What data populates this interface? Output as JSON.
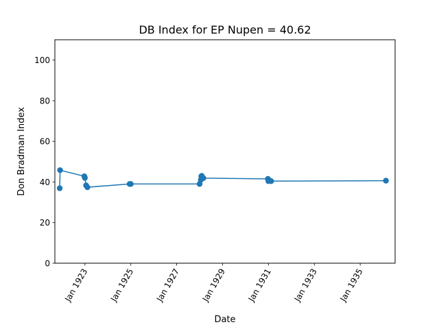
{
  "chart_data": {
    "type": "line",
    "title": "DB Index for EP Nupen = 40.62",
    "xlabel": "Date",
    "ylabel": "Don Bradman Index",
    "ylim": [
      0,
      110
    ],
    "xlim": [
      "1921-09-10",
      "1936-07-10"
    ],
    "yticks": [
      0,
      20,
      40,
      60,
      80,
      100
    ],
    "xticks": [
      {
        "label": "Jan 1923",
        "date": "1923-01-01"
      },
      {
        "label": "Jan 1925",
        "date": "1925-01-01"
      },
      {
        "label": "Jan 1927",
        "date": "1927-01-01"
      },
      {
        "label": "Jan 1929",
        "date": "1929-01-01"
      },
      {
        "label": "Jan 1931",
        "date": "1931-01-01"
      },
      {
        "label": "Jan 1933",
        "date": "1933-01-01"
      },
      {
        "label": "Jan 1935",
        "date": "1935-01-01"
      }
    ],
    "grid": false,
    "series": [
      {
        "color": "#1f77b4",
        "points": [
          {
            "x": "1921-11-26",
            "y": 36.9
          },
          {
            "x": "1921-12-02",
            "y": 45.8
          },
          {
            "x": "1922-12-23",
            "y": 42.8
          },
          {
            "x": "1923-01-01",
            "y": 42.0
          },
          {
            "x": "1923-01-20",
            "y": 38.3
          },
          {
            "x": "1923-02-10",
            "y": 37.4
          },
          {
            "x": "1924-12-13",
            "y": 39.0
          },
          {
            "x": "1925-01-01",
            "y": 39.0
          },
          {
            "x": "1928-01-01",
            "y": 39.0
          },
          {
            "x": "1928-01-21",
            "y": 41.0
          },
          {
            "x": "1928-01-28",
            "y": 42.8
          },
          {
            "x": "1928-02-04",
            "y": 43.0
          },
          {
            "x": "1928-03-01",
            "y": 41.9
          },
          {
            "x": "1930-12-24",
            "y": 41.5
          },
          {
            "x": "1931-01-01",
            "y": 40.4
          },
          {
            "x": "1931-01-16",
            "y": 40.8
          },
          {
            "x": "1931-02-13",
            "y": 40.4
          },
          {
            "x": "1936-02-15",
            "y": 40.62
          }
        ]
      }
    ]
  }
}
